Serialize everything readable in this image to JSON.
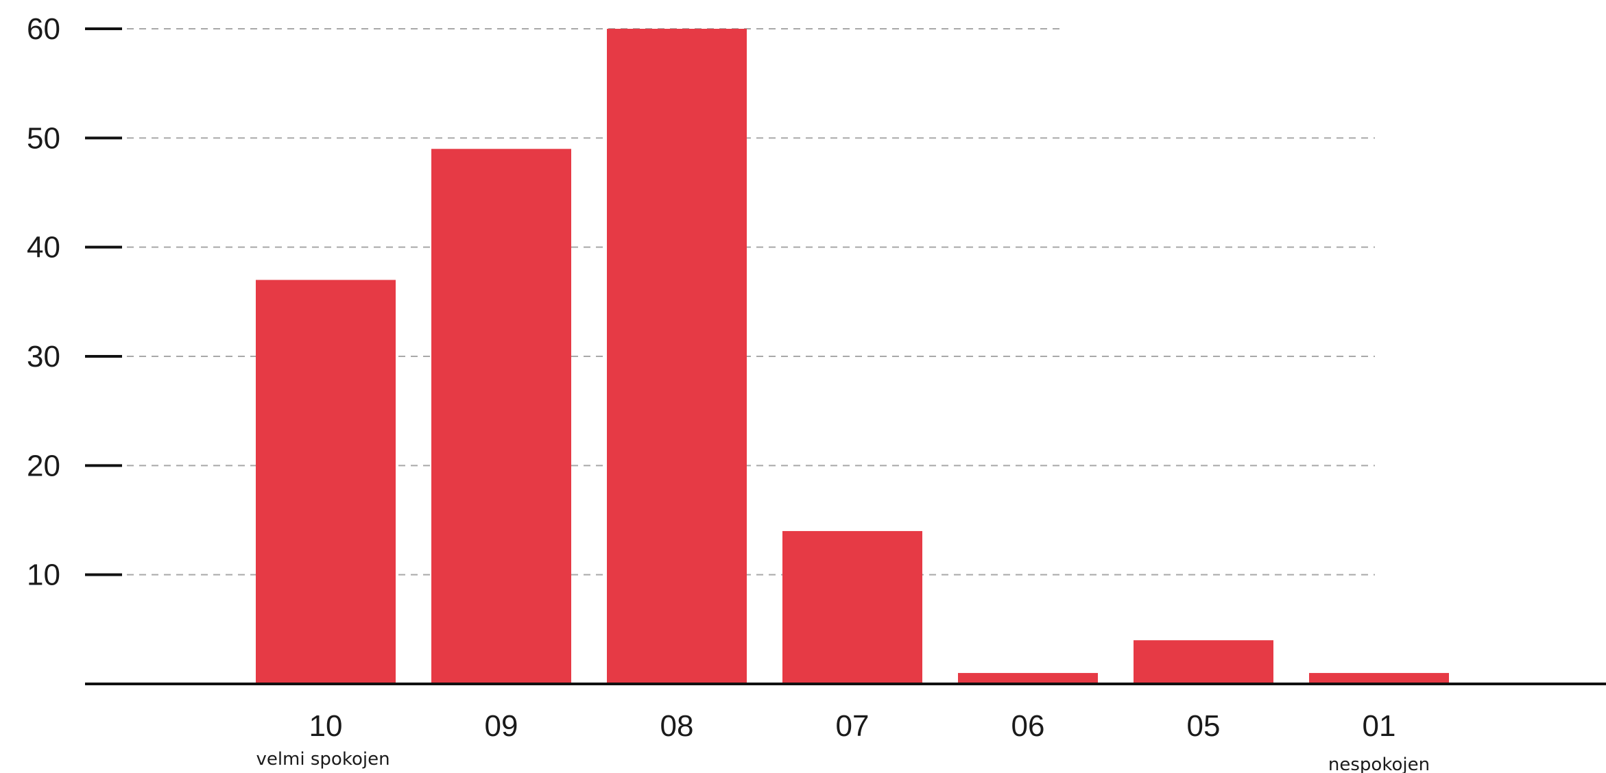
{
  "chart_data": {
    "type": "bar",
    "categories": [
      "10",
      "09",
      "08",
      "07",
      "06",
      "05",
      "01"
    ],
    "values": [
      37,
      49,
      60,
      14,
      1,
      4,
      1
    ],
    "ylim": [
      0,
      60
    ],
    "yticks": [
      10,
      20,
      30,
      40,
      50,
      60
    ],
    "ytick_labels": [
      "10",
      "20",
      "30",
      "40",
      "50",
      "60"
    ],
    "annotations": [
      {
        "category": "10",
        "text": "velmi spokojen"
      },
      {
        "category": "01",
        "text": "nespokojen"
      }
    ],
    "grid": true,
    "bar_color": "#e63a45",
    "grid_color": "#a8a8a8",
    "axis_color": "#111111",
    "text_color": "#1a1a1a"
  }
}
